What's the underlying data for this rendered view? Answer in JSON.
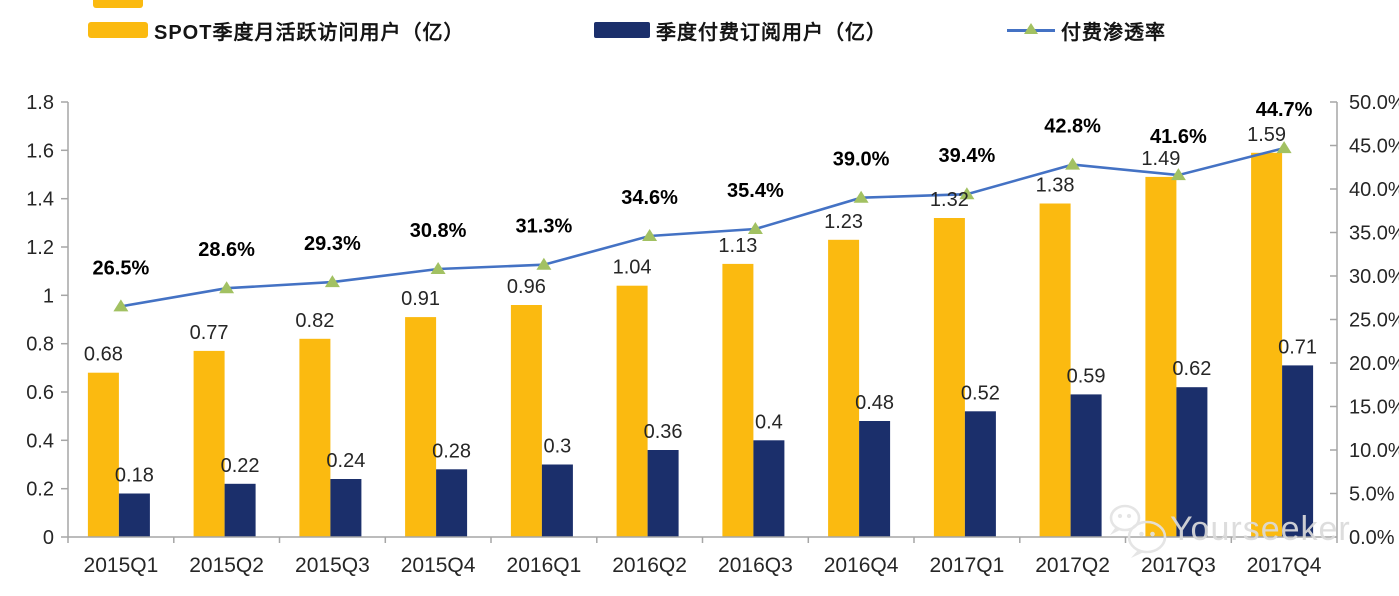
{
  "legend": [
    {
      "label": "SPOT季度月活跃访问用户（亿）",
      "swatch": "bar",
      "color": "#FBBA10"
    },
    {
      "label": "季度付费订阅用户（亿）",
      "swatch": "bar",
      "color": "#1B2F6B"
    },
    {
      "label": "付费渗透率",
      "swatch": "line",
      "color": "#4472C4",
      "marker_color": "#A2C162"
    }
  ],
  "chart_data": {
    "type": "bar",
    "title": "",
    "categories": [
      "2015Q1",
      "2015Q2",
      "2015Q3",
      "2015Q4",
      "2016Q1",
      "2016Q2",
      "2016Q3",
      "2016Q4",
      "2017Q1",
      "2017Q2",
      "2017Q3",
      "2017Q4"
    ],
    "series": [
      {
        "name": "SPOT季度月活跃访问用户（亿）",
        "type": "bar",
        "axis": "left",
        "color": "#FBBA10",
        "values": [
          0.68,
          0.77,
          0.82,
          0.91,
          0.96,
          1.04,
          1.13,
          1.23,
          1.32,
          1.38,
          1.49,
          1.59
        ],
        "labels": [
          "0.68",
          "0.77",
          "0.82",
          "0.91",
          "0.96",
          "1.04",
          "1.13",
          "1.23",
          "1.32",
          "1.38",
          "1.49",
          "1.59"
        ]
      },
      {
        "name": "季度付费订阅用户（亿）",
        "type": "bar",
        "axis": "left",
        "color": "#1B2F6B",
        "values": [
          0.18,
          0.22,
          0.24,
          0.28,
          0.3,
          0.36,
          0.4,
          0.48,
          0.52,
          0.59,
          0.62,
          0.71
        ],
        "labels": [
          "0.18",
          "0.22",
          "0.24",
          "0.28",
          "0.3",
          "0.36",
          "0.4",
          "0.48",
          "0.52",
          "0.59",
          "0.62",
          "0.71"
        ]
      },
      {
        "name": "付费渗透率",
        "type": "line",
        "axis": "right",
        "color": "#4472C4",
        "marker": "triangle",
        "marker_color": "#A2C162",
        "values": [
          26.5,
          28.6,
          29.3,
          30.8,
          31.3,
          34.6,
          35.4,
          39.0,
          39.4,
          42.8,
          41.6,
          44.7
        ],
        "labels": [
          "26.5%",
          "28.6%",
          "29.3%",
          "30.8%",
          "31.3%",
          "34.6%",
          "35.4%",
          "39.0%",
          "39.4%",
          "42.8%",
          "41.6%",
          "44.7%"
        ]
      }
    ],
    "left_axis": {
      "min": 0,
      "max": 1.8,
      "step": 0.2,
      "ticks": [
        "0",
        "0.2",
        "0.4",
        "0.6",
        "0.8",
        "1",
        "1.2",
        "1.4",
        "1.6",
        "1.8"
      ]
    },
    "right_axis": {
      "min": 0,
      "max": 50,
      "step": 5,
      "ticks": [
        "0.0%",
        "5.0%",
        "10.0%",
        "15.0%",
        "20.0%",
        "25.0%",
        "30.0%",
        "35.0%",
        "40.0%",
        "45.0%",
        "50.0%"
      ]
    },
    "grid": false,
    "legend_position": "top",
    "colors": {
      "axis": "#A6A6A6",
      "tick_text": "#262626"
    }
  },
  "watermark": {
    "text": "Yourseeker",
    "icon": "wechat-icon"
  }
}
